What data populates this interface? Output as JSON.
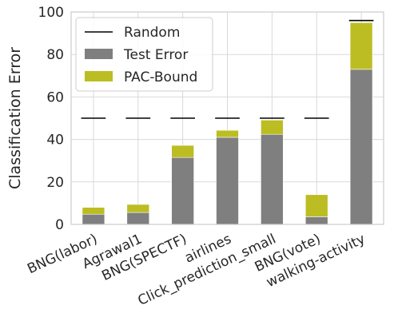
{
  "chart_data": {
    "type": "bar",
    "stacked": true,
    "ylabel": "Classification Error",
    "xlabel": "",
    "ylim": [
      0,
      100
    ],
    "yticks": [
      0,
      20,
      40,
      60,
      80,
      100
    ],
    "grid": true,
    "categories": [
      "BNG(labor)",
      "Agrawal1",
      "BNG(SPECTF)",
      "airlines",
      "Click_prediction_small",
      "BNG(vote)",
      "walking-activity"
    ],
    "series": [
      {
        "name": "Test Error",
        "color": "#7f7f7f",
        "values": [
          4.8,
          5.6,
          31.5,
          41.0,
          42.4,
          3.6,
          73.0
        ]
      },
      {
        "name": "PAC-Bound",
        "color": "#bcbd22",
        "values": [
          3.2,
          3.8,
          5.7,
          3.3,
          6.7,
          10.4,
          22.0
        ]
      }
    ],
    "random": {
      "name": "Random",
      "color": "#000000",
      "values": [
        50,
        50,
        50,
        50,
        50,
        50,
        96
      ]
    },
    "legend": {
      "placement": "top-left",
      "entries": [
        "Random",
        "Test Error",
        "PAC-Bound"
      ]
    }
  }
}
